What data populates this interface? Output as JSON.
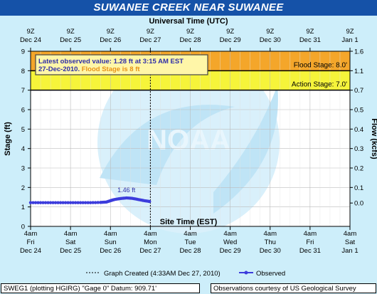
{
  "header": {
    "title": "SUWANEE CREEK NEAR SUWANEE"
  },
  "chart_data": {
    "type": "line",
    "top_axis": {
      "label": "Universal Time (UTC)",
      "ticks": [
        {
          "time": "9Z",
          "date": "Dec 24"
        },
        {
          "time": "9Z",
          "date": "Dec 25"
        },
        {
          "time": "9Z",
          "date": "Dec 26"
        },
        {
          "time": "9Z",
          "date": "Dec 27"
        },
        {
          "time": "9Z",
          "date": "Dec 28"
        },
        {
          "time": "9Z",
          "date": "Dec 29"
        },
        {
          "time": "9Z",
          "date": "Dec 30"
        },
        {
          "time": "9Z",
          "date": "Dec 31"
        },
        {
          "time": "9Z",
          "date": "Jan 1"
        }
      ]
    },
    "bottom_axis": {
      "label": "Site Time (EST)",
      "ticks": [
        {
          "time": "4am",
          "day": "Fri",
          "date": "Dec 24"
        },
        {
          "time": "4am",
          "day": "Sat",
          "date": "Dec 25"
        },
        {
          "time": "4am",
          "day": "Sun",
          "date": "Dec 26"
        },
        {
          "time": "4am",
          "day": "Mon",
          "date": "Dec 27"
        },
        {
          "time": "4am",
          "day": "Tue",
          "date": "Dec 28"
        },
        {
          "time": "4am",
          "day": "Wed",
          "date": "Dec 29"
        },
        {
          "time": "4am",
          "day": "Thu",
          "date": "Dec 30"
        },
        {
          "time": "4am",
          "day": "Fri",
          "date": "Dec 31"
        },
        {
          "time": "4am",
          "day": "Sat",
          "date": "Jan 1"
        }
      ]
    },
    "left_axis": {
      "label": "Stage (ft)",
      "ylim": [
        0,
        9
      ],
      "ticks": [
        "0",
        "1",
        "2",
        "3",
        "4",
        "5",
        "6",
        "7",
        "8",
        "9"
      ]
    },
    "right_axis": {
      "label": "Flow (kcfs)",
      "ticks": [
        {
          "stage": 1.2,
          "label": "0.0"
        },
        {
          "stage": 2.0,
          "label": "0.1"
        },
        {
          "stage": 3.0,
          "label": "0.2"
        },
        {
          "stage": 4.0,
          "label": "0.3"
        },
        {
          "stage": 5.0,
          "label": "0.4"
        },
        {
          "stage": 6.0,
          "label": "0.5"
        },
        {
          "stage": 7.0,
          "label": "0.7"
        },
        {
          "stage": 8.0,
          "label": "1.1"
        },
        {
          "stage": 9.0,
          "label": "1.6"
        }
      ]
    },
    "xlim_days": [
      0,
      8
    ],
    "flood_stage": {
      "value": 8.0,
      "label": "Flood Stage: 8.0'",
      "color": "#f4a62a"
    },
    "action_stage": {
      "value": 7.0,
      "label": "Action Stage: 7.0'",
      "color": "#f6f43a"
    },
    "graph_created_day": 3.0,
    "observed": {
      "name": "Observed",
      "color": "#3c3cdc",
      "points": [
        [
          0.0,
          1.22
        ],
        [
          0.25,
          1.22
        ],
        [
          0.5,
          1.22
        ],
        [
          0.75,
          1.22
        ],
        [
          1.0,
          1.22
        ],
        [
          1.25,
          1.22
        ],
        [
          1.5,
          1.22
        ],
        [
          1.75,
          1.23
        ],
        [
          1.9,
          1.25
        ],
        [
          2.0,
          1.32
        ],
        [
          2.1,
          1.38
        ],
        [
          2.25,
          1.43
        ],
        [
          2.4,
          1.46
        ],
        [
          2.55,
          1.44
        ],
        [
          2.7,
          1.38
        ],
        [
          2.85,
          1.32
        ],
        [
          2.98,
          1.28
        ]
      ],
      "peak": {
        "day": 2.4,
        "label": "1.46 ft"
      }
    },
    "info_box": {
      "line1": "Latest observed value: 1.28 ft at 3:15 AM EST",
      "line2_date": "27-Dec-2010.",
      "line2_flood": "Flood Stage is 8 ft"
    },
    "legend": {
      "graph_created": "Graph Created (4:33AM Dec 27, 2010)",
      "observed": "Observed"
    },
    "watermark": "NOAA"
  },
  "footer": {
    "left": "SWEG1 (plotting HGIRG) \"Gage 0\" Datum: 909.71'",
    "right": "Observations courtesy of US Geological Survey"
  },
  "colors": {
    "background": "#cdeefa",
    "title_bar": "#1552a8",
    "axis_text": "#000000",
    "label_blue": "#2f2fa8"
  }
}
